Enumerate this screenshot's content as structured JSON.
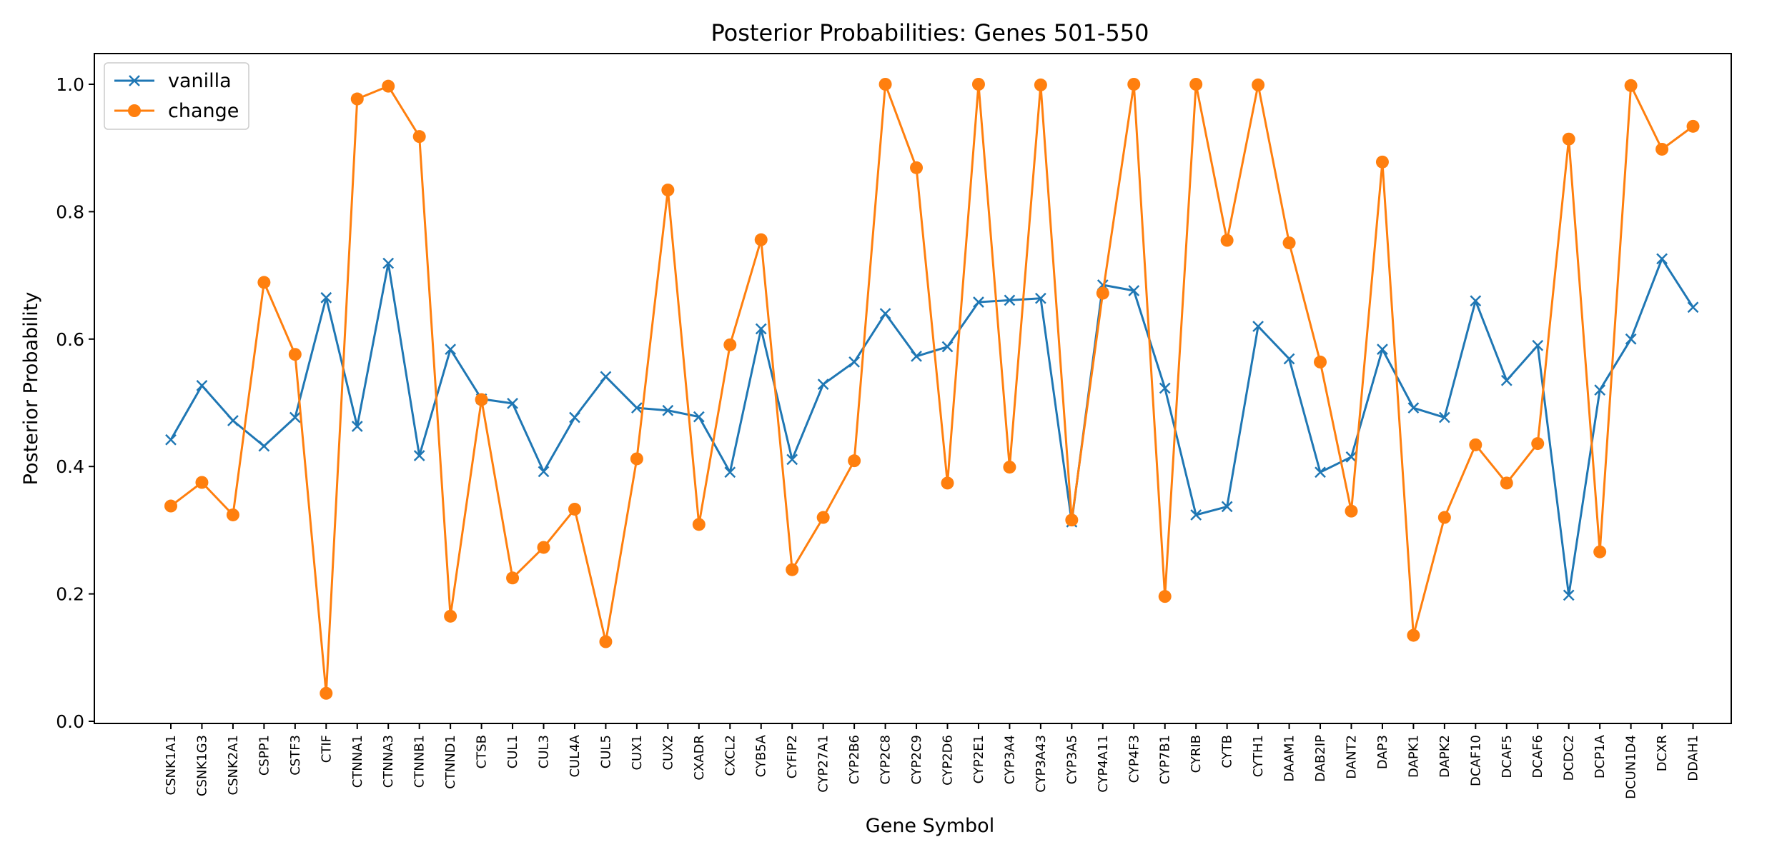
{
  "chart_data": {
    "type": "line",
    "title": "Posterior Probabilities: Genes 501-550",
    "xlabel": "Gene Symbol",
    "ylabel": "Posterior Probability",
    "ylim": [
      0.0,
      1.0
    ],
    "yticks": [
      "0.0",
      "0.2",
      "0.4",
      "0.6",
      "0.8",
      "1.0"
    ],
    "grid": false,
    "legend_position": "top-left",
    "categories": [
      "CSNK1A1",
      "CSNK1G3",
      "CSNK2A1",
      "CSPP1",
      "CSTF3",
      "CTIF",
      "CTNNA1",
      "CTNNA3",
      "CTNNB1",
      "CTNND1",
      "CTSB",
      "CUL1",
      "CUL3",
      "CUL4A",
      "CUL5",
      "CUX1",
      "CUX2",
      "CXADR",
      "CXCL2",
      "CYB5A",
      "CYFIP2",
      "CYP27A1",
      "CYP2B6",
      "CYP2C8",
      "CYP2C9",
      "CYP2D6",
      "CYP2E1",
      "CYP3A4",
      "CYP3A43",
      "CYP3A5",
      "CYP4A11",
      "CYP4F3",
      "CYP7B1",
      "CYRIB",
      "CYTB",
      "CYTH1",
      "DAAM1",
      "DAB2IP",
      "DANT2",
      "DAP3",
      "DAPK1",
      "DAPK2",
      "DCAF10",
      "DCAF5",
      "DCAF6",
      "DCDC2",
      "DCP1A",
      "DCUN1D4",
      "DCXR",
      "DDAH1"
    ],
    "series": [
      {
        "name": "vanilla",
        "color": "#1f77b4",
        "marker": "x",
        "values": [
          0.442,
          0.527,
          0.472,
          0.432,
          0.477,
          0.665,
          0.463,
          0.719,
          0.417,
          0.584,
          0.506,
          0.499,
          0.392,
          0.477,
          0.541,
          0.492,
          0.488,
          0.478,
          0.391,
          0.616,
          0.411,
          0.529,
          0.564,
          0.64,
          0.573,
          0.588,
          0.658,
          0.661,
          0.664,
          0.313,
          0.685,
          0.676,
          0.523,
          0.324,
          0.337,
          0.62,
          0.569,
          0.391,
          0.415,
          0.584,
          0.492,
          0.477,
          0.66,
          0.535,
          0.59,
          0.198,
          0.52,
          0.6,
          0.726,
          0.65
        ]
      },
      {
        "name": "change",
        "color": "#ff7f0e",
        "marker": "o",
        "values": [
          0.338,
          0.375,
          0.324,
          0.689,
          0.576,
          0.044,
          0.977,
          0.997,
          0.918,
          0.165,
          0.505,
          0.225,
          0.273,
          0.333,
          0.125,
          0.412,
          0.834,
          0.309,
          0.591,
          0.756,
          0.238,
          0.32,
          0.409,
          1.0,
          0.869,
          0.374,
          1.0,
          0.399,
          0.999,
          0.316,
          0.672,
          1.0,
          0.196,
          1.0,
          0.755,
          0.999,
          0.751,
          0.564,
          0.33,
          0.878,
          0.135,
          0.32,
          0.434,
          0.374,
          0.436,
          0.914,
          0.266,
          0.998,
          0.898,
          0.934
        ]
      }
    ]
  }
}
